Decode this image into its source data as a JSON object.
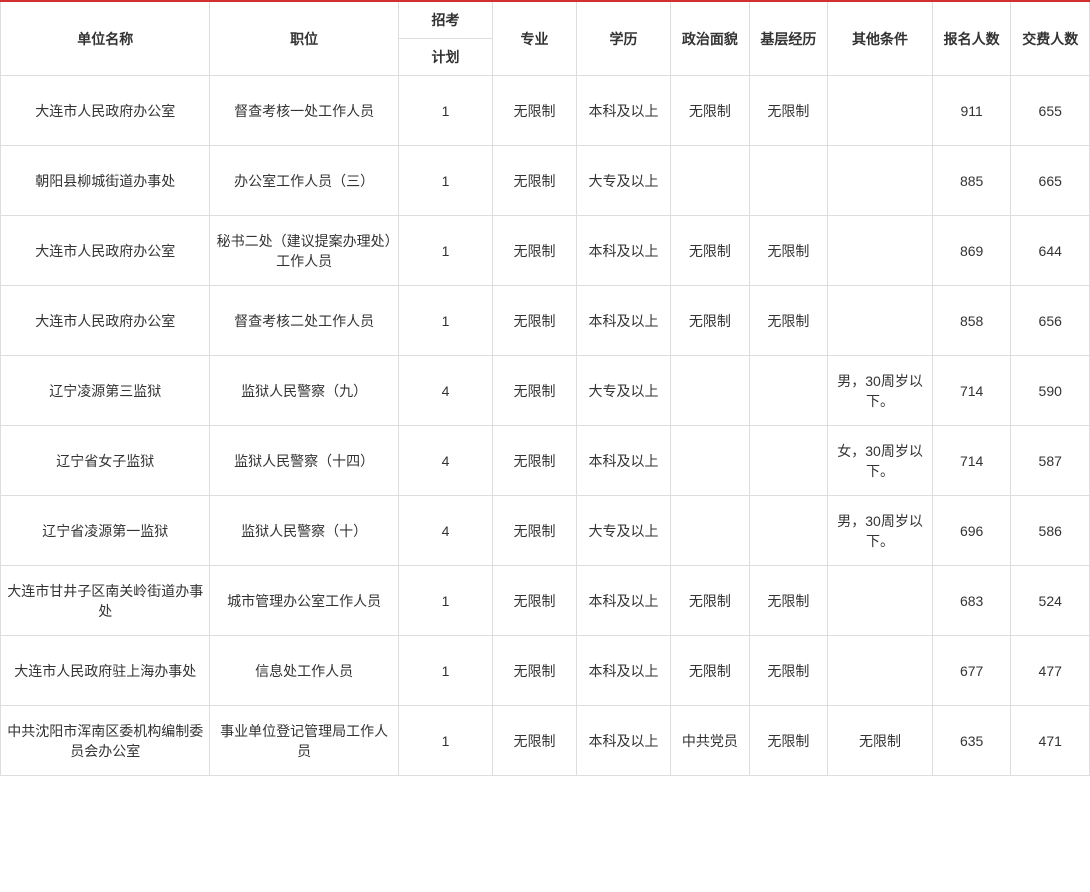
{
  "table": {
    "headers": {
      "unit": "单位名称",
      "position": "职位",
      "recruit": "招考",
      "plan": "计划",
      "major": "专业",
      "education": "学历",
      "political": "政治面貌",
      "experience": "基层经历",
      "other": "其他条件",
      "applicants": "报名人数",
      "paid": "交费人数"
    },
    "rows": [
      {
        "unit": "大连市人民政府办公室",
        "position": "督查考核一处工作人员",
        "plan": "1",
        "major": "无限制",
        "education": "本科及以上",
        "political": "无限制",
        "experience": "无限制",
        "other": "",
        "applicants": "911",
        "paid": "655"
      },
      {
        "unit": "朝阳县柳城街道办事处",
        "position": "办公室工作人员（三）",
        "plan": "1",
        "major": "无限制",
        "education": "大专及以上",
        "political": "",
        "experience": "",
        "other": "",
        "applicants": "885",
        "paid": "665"
      },
      {
        "unit": "大连市人民政府办公室",
        "position": "秘书二处（建议提案办理处）工作人员",
        "plan": "1",
        "major": "无限制",
        "education": "本科及以上",
        "political": "无限制",
        "experience": "无限制",
        "other": "",
        "applicants": "869",
        "paid": "644"
      },
      {
        "unit": "大连市人民政府办公室",
        "position": "督查考核二处工作人员",
        "plan": "1",
        "major": "无限制",
        "education": "本科及以上",
        "political": "无限制",
        "experience": "无限制",
        "other": "",
        "applicants": "858",
        "paid": "656"
      },
      {
        "unit": "辽宁凌源第三监狱",
        "position": "监狱人民警察（九）",
        "plan": "4",
        "major": "无限制",
        "education": "大专及以上",
        "political": "",
        "experience": "",
        "other": "男，30周岁以下。",
        "applicants": "714",
        "paid": "590"
      },
      {
        "unit": "辽宁省女子监狱",
        "position": "监狱人民警察（十四）",
        "plan": "4",
        "major": "无限制",
        "education": "本科及以上",
        "political": "",
        "experience": "",
        "other": "女，30周岁以下。",
        "applicants": "714",
        "paid": "587"
      },
      {
        "unit": "辽宁省凌源第一监狱",
        "position": "监狱人民警察（十）",
        "plan": "4",
        "major": "无限制",
        "education": "大专及以上",
        "political": "",
        "experience": "",
        "other": "男，30周岁以下。",
        "applicants": "696",
        "paid": "586"
      },
      {
        "unit": "大连市甘井子区南关岭街道办事处",
        "position": "城市管理办公室工作人员",
        "plan": "1",
        "major": "无限制",
        "education": "本科及以上",
        "political": "无限制",
        "experience": "无限制",
        "other": "",
        "applicants": "683",
        "paid": "524"
      },
      {
        "unit": "大连市人民政府驻上海办事处",
        "position": "信息处工作人员",
        "plan": "1",
        "major": "无限制",
        "education": "本科及以上",
        "political": "无限制",
        "experience": "无限制",
        "other": "",
        "applicants": "677",
        "paid": "477"
      },
      {
        "unit": "中共沈阳市浑南区委机构编制委员会办公室",
        "position": "事业单位登记管理局工作人员",
        "plan": "1",
        "major": "无限制",
        "education": "本科及以上",
        "political": "中共党员",
        "experience": "无限制",
        "other": "无限制",
        "applicants": "635",
        "paid": "471"
      }
    ],
    "styling": {
      "border_color": "#dddddd",
      "top_border_color": "#d32f2f",
      "text_color": "#333333",
      "background_color": "#ffffff",
      "font_size": 14,
      "header_font_weight": "bold"
    }
  }
}
